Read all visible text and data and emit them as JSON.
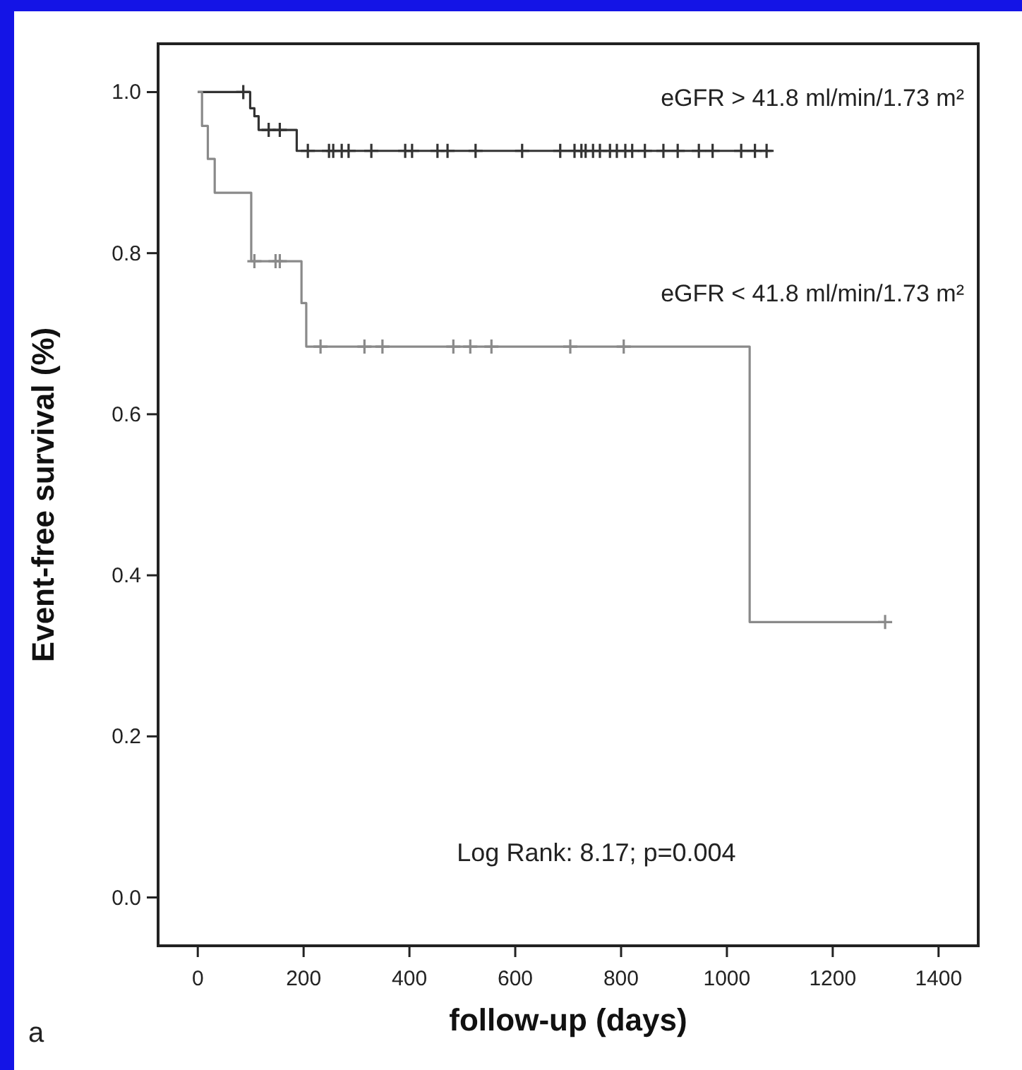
{
  "chart_data": {
    "type": "step",
    "xlabel": "follow-up (days)",
    "ylabel": "Event-free survival (%)",
    "xlim": [
      -75,
      1475
    ],
    "xticks": [
      0,
      200,
      400,
      600,
      800,
      1000,
      1200,
      1400
    ],
    "ylim": [
      -0.06,
      1.06
    ],
    "yticks": [
      {
        "value": 0,
        "label": "0.0"
      },
      0.2,
      0.4,
      0.6,
      0.8,
      {
        "value": 1,
        "label": "1.0"
      }
    ],
    "grid": false,
    "line_style": "solid",
    "annotations": [
      "Log Rank: 8.17; p=0.004",
      "a"
    ],
    "series": [
      {
        "name": "eGFR > 41.8 ml/min/1.73 m²",
        "color": "#333333",
        "x": [
          0,
          99,
          107,
          115,
          187,
          1085
        ],
        "values": [
          1,
          0.98,
          0.97,
          0.953,
          0.927,
          0.927
        ]
      },
      {
        "name": "eGFR < 41.8 ml/min/1.73 m²",
        "color": "#8a8a8a",
        "x": [
          0,
          8,
          19,
          32,
          101,
          196,
          205,
          1043,
          1299
        ],
        "values": [
          1,
          0.958,
          0.917,
          0.875,
          0.79,
          0.738,
          0.684,
          0.342,
          0.342
        ]
      },
      {
        "type": "scatter",
        "marker": "cross",
        "color": "#333333",
        "x": [
          86,
          134,
          155,
          208,
          248,
          256,
          272,
          285,
          328,
          392,
          405,
          453,
          472,
          525,
          613,
          685,
          712,
          725,
          733,
          747,
          760,
          779,
          792,
          808,
          821,
          845,
          880,
          907,
          947,
          973,
          1027,
          1053,
          1075
        ],
        "values": [
          1,
          0.953,
          0.953,
          0.927,
          0.927,
          0.927,
          0.927,
          0.927,
          0.927,
          0.927,
          0.927,
          0.927,
          0.927,
          0.927,
          0.927,
          0.927,
          0.927,
          0.927,
          0.927,
          0.927,
          0.927,
          0.927,
          0.927,
          0.927,
          0.927,
          0.927,
          0.927,
          0.927,
          0.927,
          0.927,
          0.927,
          0.927,
          0.927
        ]
      },
      {
        "type": "scatter",
        "marker": "cross",
        "color": "#8a8a8a",
        "x": [
          107,
          147,
          155,
          232,
          315,
          349,
          483,
          515,
          555,
          704,
          805,
          1299
        ],
        "values": [
          0.79,
          0.79,
          0.79,
          0.684,
          0.684,
          0.684,
          0.684,
          0.684,
          0.684,
          0.684,
          0.684,
          0.342
        ]
      }
    ]
  }
}
